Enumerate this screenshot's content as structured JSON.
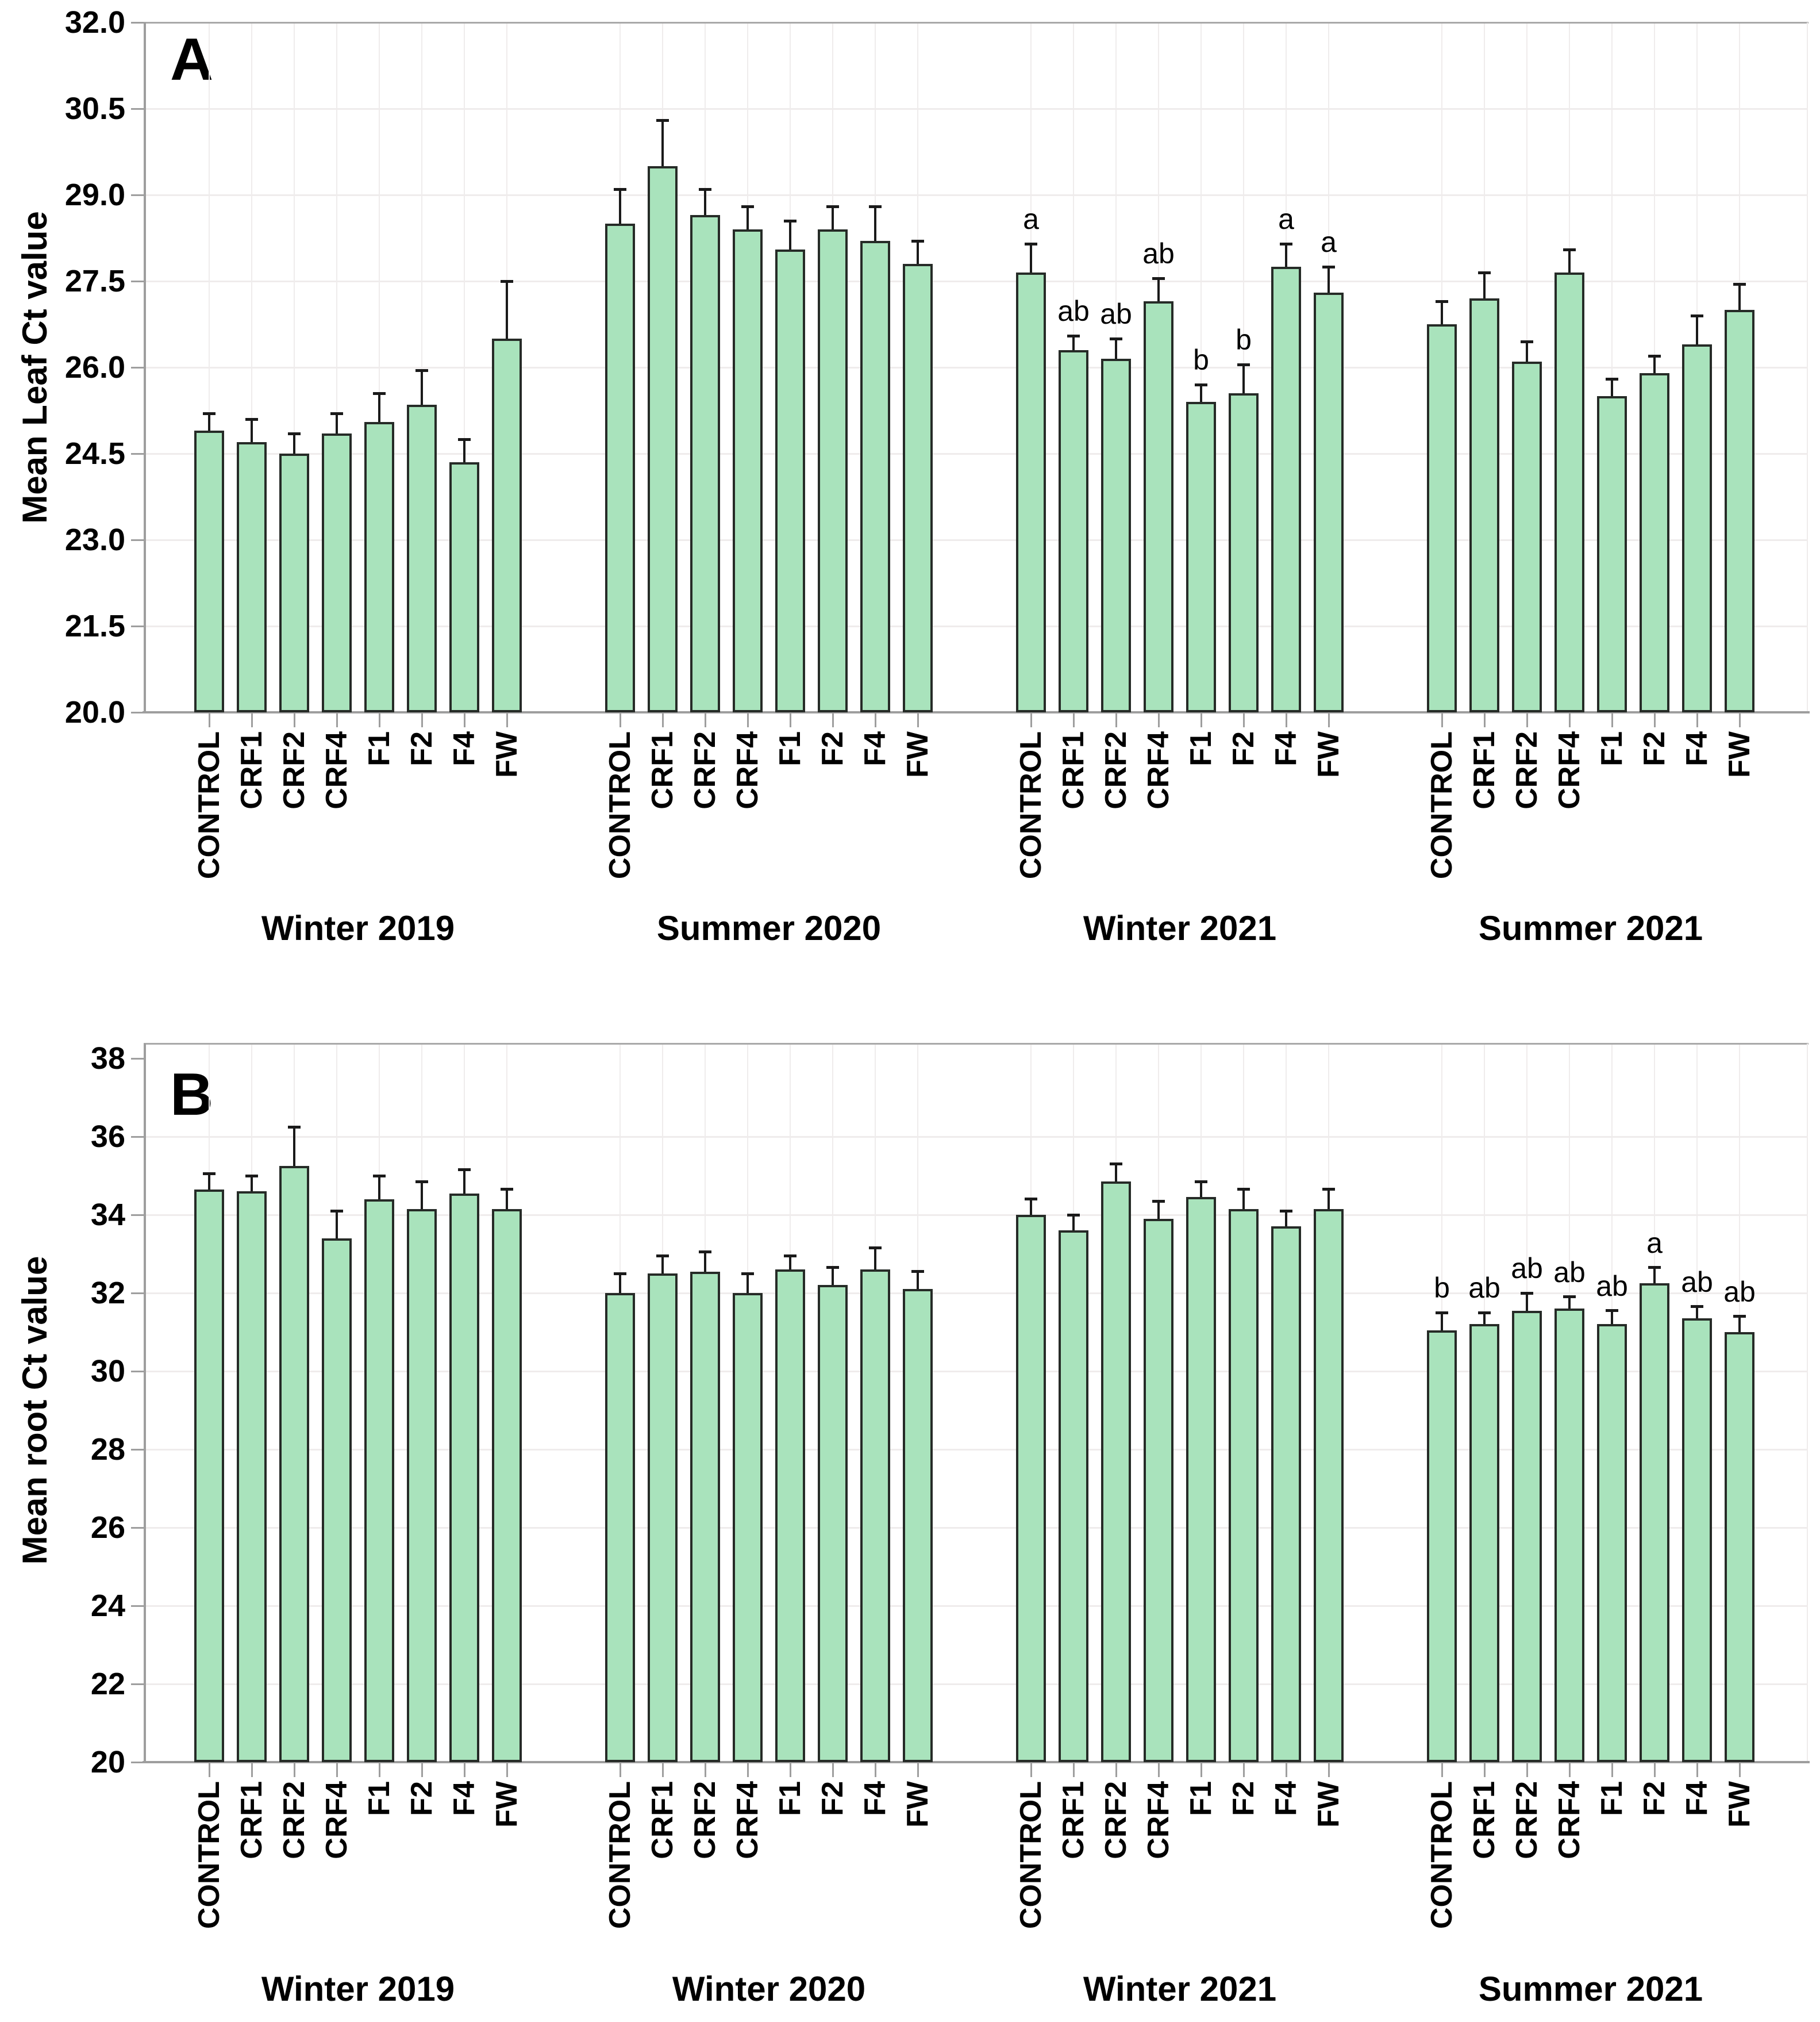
{
  "figure": {
    "background": "#ffffff",
    "panels": [
      "A",
      "B"
    ]
  },
  "style": {
    "bar_fill": "#a9e3bc",
    "bar_border": "#262b27",
    "error_color": "#1a1a1a",
    "grid_color": "#efecec",
    "axis_color": "#9e9e9e",
    "frame_color": "#a9a9a9",
    "text_color": "#000000"
  },
  "chart_data": [
    {
      "type": "bar",
      "panel_label": "A",
      "ylabel": "Mean Leaf Ct value",
      "xlabel": "",
      "ylim": [
        20.0,
        32.0
      ],
      "ytick_labels": [
        "32.0",
        "30.5",
        "29.0",
        "27.5",
        "26.0",
        "24.5",
        "23.0",
        "21.5",
        "20.0"
      ],
      "grid": true,
      "legend_position": "none",
      "categories": [
        "CONTROL",
        "CRF1",
        "CRF2",
        "CRF4",
        "F1",
        "F2",
        "F4",
        "FW"
      ],
      "groups": [
        {
          "label": "Winter 2019",
          "values": [
            24.9,
            24.7,
            24.5,
            24.85,
            25.05,
            25.35,
            24.35,
            26.5
          ],
          "errors": [
            0.3,
            0.4,
            0.35,
            0.35,
            0.5,
            0.6,
            0.4,
            1.0
          ],
          "letters": [
            "",
            "",
            "",
            "",
            "",
            "",
            "",
            ""
          ]
        },
        {
          "label": "Summer 2020",
          "values": [
            28.5,
            29.5,
            28.65,
            28.4,
            28.05,
            28.4,
            28.2,
            27.8
          ],
          "errors": [
            0.6,
            0.8,
            0.45,
            0.4,
            0.5,
            0.4,
            0.6,
            0.4
          ],
          "letters": [
            "",
            "",
            "",
            "",
            "",
            "",
            "",
            ""
          ]
        },
        {
          "label": "Winter 2021",
          "values": [
            27.65,
            26.3,
            26.15,
            27.15,
            25.4,
            25.55,
            27.75,
            27.3
          ],
          "errors": [
            0.5,
            0.25,
            0.35,
            0.4,
            0.3,
            0.5,
            0.4,
            0.45
          ],
          "letters": [
            "a",
            "ab",
            "ab",
            "ab",
            "b",
            "b",
            "a",
            "a"
          ]
        },
        {
          "label": "Summer 2021",
          "values": [
            26.75,
            27.2,
            26.1,
            27.65,
            25.5,
            25.9,
            26.4,
            27.0
          ],
          "errors": [
            0.4,
            0.45,
            0.35,
            0.4,
            0.3,
            0.3,
            0.5,
            0.45
          ],
          "letters": [
            "",
            "",
            "",
            "",
            "",
            "",
            "",
            ""
          ]
        }
      ]
    },
    {
      "type": "bar",
      "panel_label": "B",
      "ylabel": "Mean root Ct value",
      "xlabel": "",
      "ylim": [
        20,
        38
      ],
      "ytick_labels": [
        "38",
        "36",
        "34",
        "32",
        "30",
        "28",
        "26",
        "24",
        "22",
        "20"
      ],
      "grid": true,
      "legend_position": "none",
      "categories": [
        "CONTROL",
        "CRF1",
        "CRF2",
        "CRF4",
        "F1",
        "F2",
        "F4",
        "FW"
      ],
      "groups": [
        {
          "label": "Winter 2019",
          "values": [
            34.65,
            34.6,
            35.25,
            33.4,
            34.4,
            34.15,
            34.55,
            34.15
          ],
          "errors": [
            0.4,
            0.4,
            1.0,
            0.7,
            0.6,
            0.7,
            0.6,
            0.5
          ],
          "letters": [
            "",
            "",
            "",
            "",
            "",
            "",
            "",
            ""
          ]
        },
        {
          "label": "Winter 2020",
          "values": [
            32.0,
            32.5,
            32.55,
            32.0,
            32.6,
            32.2,
            32.6,
            32.1
          ],
          "errors": [
            0.5,
            0.45,
            0.5,
            0.5,
            0.35,
            0.45,
            0.55,
            0.45
          ],
          "letters": [
            "",
            "",
            "",
            "",
            "",
            "",
            "",
            ""
          ]
        },
        {
          "label": "Winter 2021",
          "values": [
            34.0,
            33.6,
            34.85,
            33.9,
            34.45,
            34.15,
            33.7,
            34.15
          ],
          "errors": [
            0.4,
            0.4,
            0.45,
            0.45,
            0.4,
            0.5,
            0.4,
            0.5
          ],
          "letters": [
            "",
            "",
            "",
            "",
            "",
            "",
            "",
            ""
          ]
        },
        {
          "label": "Summer 2021",
          "values": [
            31.05,
            31.2,
            31.55,
            31.6,
            31.2,
            32.25,
            31.35,
            31.0
          ],
          "errors": [
            0.45,
            0.3,
            0.45,
            0.3,
            0.35,
            0.4,
            0.3,
            0.4
          ],
          "letters": [
            "b",
            "ab",
            "ab",
            "ab",
            "ab",
            "a",
            "ab",
            "ab"
          ]
        }
      ]
    }
  ]
}
